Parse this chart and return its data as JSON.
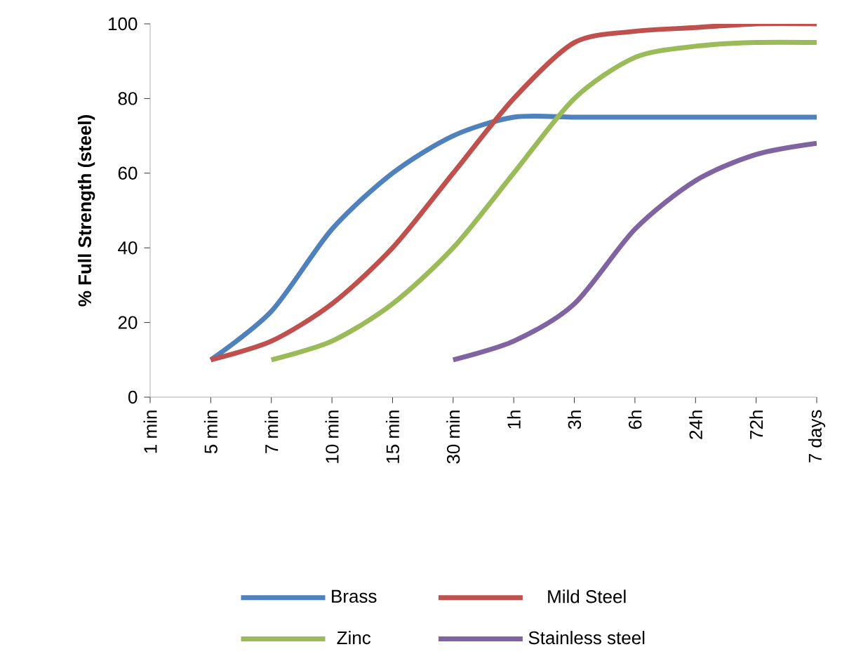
{
  "chart_data": {
    "type": "line",
    "ylabel": "% Full Strength (steel)",
    "categories": [
      "1 min",
      "5 min",
      "7 min",
      "10 min",
      "15 min",
      "30 min",
      "1h",
      "3h",
      "6h",
      "24h",
      "72h",
      "7 days"
    ],
    "series": [
      {
        "name": "Brass",
        "color": "#4f81bd",
        "values": [
          null,
          10,
          23,
          45,
          60,
          70,
          75,
          75,
          75,
          75,
          75,
          75
        ]
      },
      {
        "name": "Mild Steel",
        "color": "#c0504d",
        "values": [
          null,
          10,
          15,
          25,
          40,
          60,
          80,
          95,
          98,
          99,
          100,
          100
        ]
      },
      {
        "name": "Zinc",
        "color": "#9bbb59",
        "values": [
          null,
          null,
          10,
          15,
          25,
          40,
          60,
          80,
          91,
          94,
          95,
          95
        ]
      },
      {
        "name": "Stainless steel",
        "color": "#8064a2",
        "values": [
          null,
          null,
          null,
          null,
          null,
          10,
          15,
          25,
          45,
          58,
          65,
          68
        ]
      }
    ],
    "ylim": [
      0,
      100
    ],
    "yticks": [
      0,
      20,
      40,
      60,
      80,
      100
    ],
    "grid": false,
    "legend": "bottom",
    "marker": "none",
    "line_style": "solid"
  }
}
